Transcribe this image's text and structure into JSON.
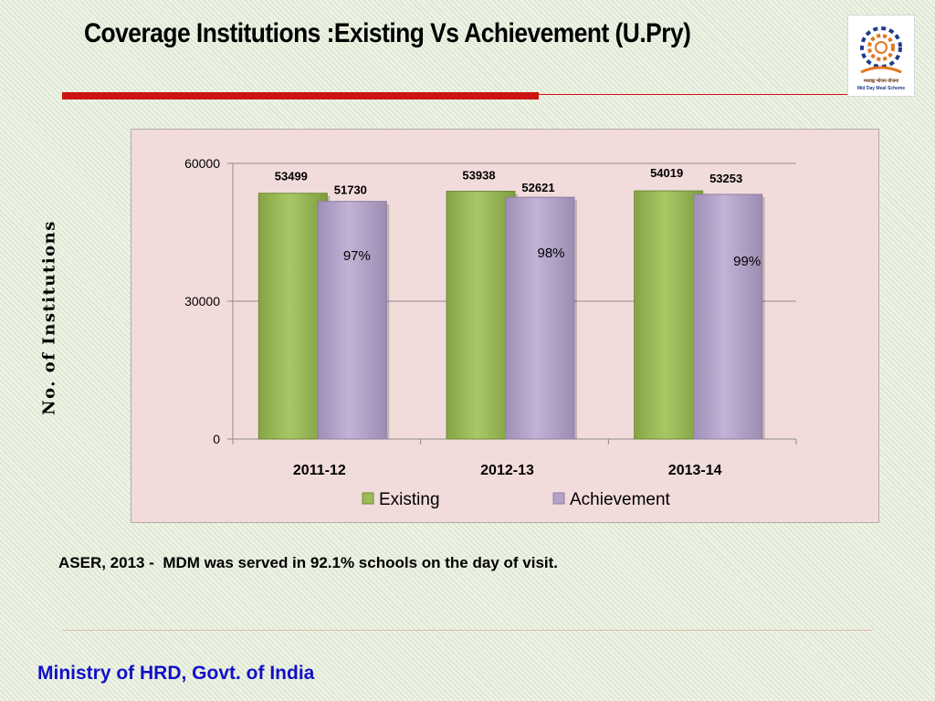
{
  "title": "Coverage  Institutions :Existing Vs Achievement (U.Pry)",
  "logo": {
    "line1": "मध्याह्न भोजन योजना",
    "line2": "Mid Day Meal Scheme"
  },
  "note": "ASER, 2013 -  MDM was served in 92.1% schools on the day of visit.",
  "footer": "Ministry of HRD, Govt. of India",
  "colors": {
    "existing": "#9bbb59",
    "achievement": "#b3a2c7",
    "title_rule": "#cc1414",
    "footer_text": "#1010c8"
  },
  "chart_data": {
    "type": "bar",
    "title": "",
    "xlabel": "",
    "ylabel": "No. of Institutions",
    "categories": [
      "2011-12",
      "2012-13",
      "2013-14"
    ],
    "series": [
      {
        "name": "Existing",
        "values": [
          53499,
          53938,
          54019
        ],
        "color": "#9bbb59"
      },
      {
        "name": "Achievement",
        "values": [
          51730,
          52621,
          53253
        ],
        "color": "#b3a2c7"
      }
    ],
    "ylim": [
      0,
      60000
    ],
    "yticks": [
      0,
      30000,
      60000
    ],
    "percent_labels": [
      "97%",
      "98%",
      "99%"
    ],
    "grid": true,
    "legend": "bottom"
  }
}
